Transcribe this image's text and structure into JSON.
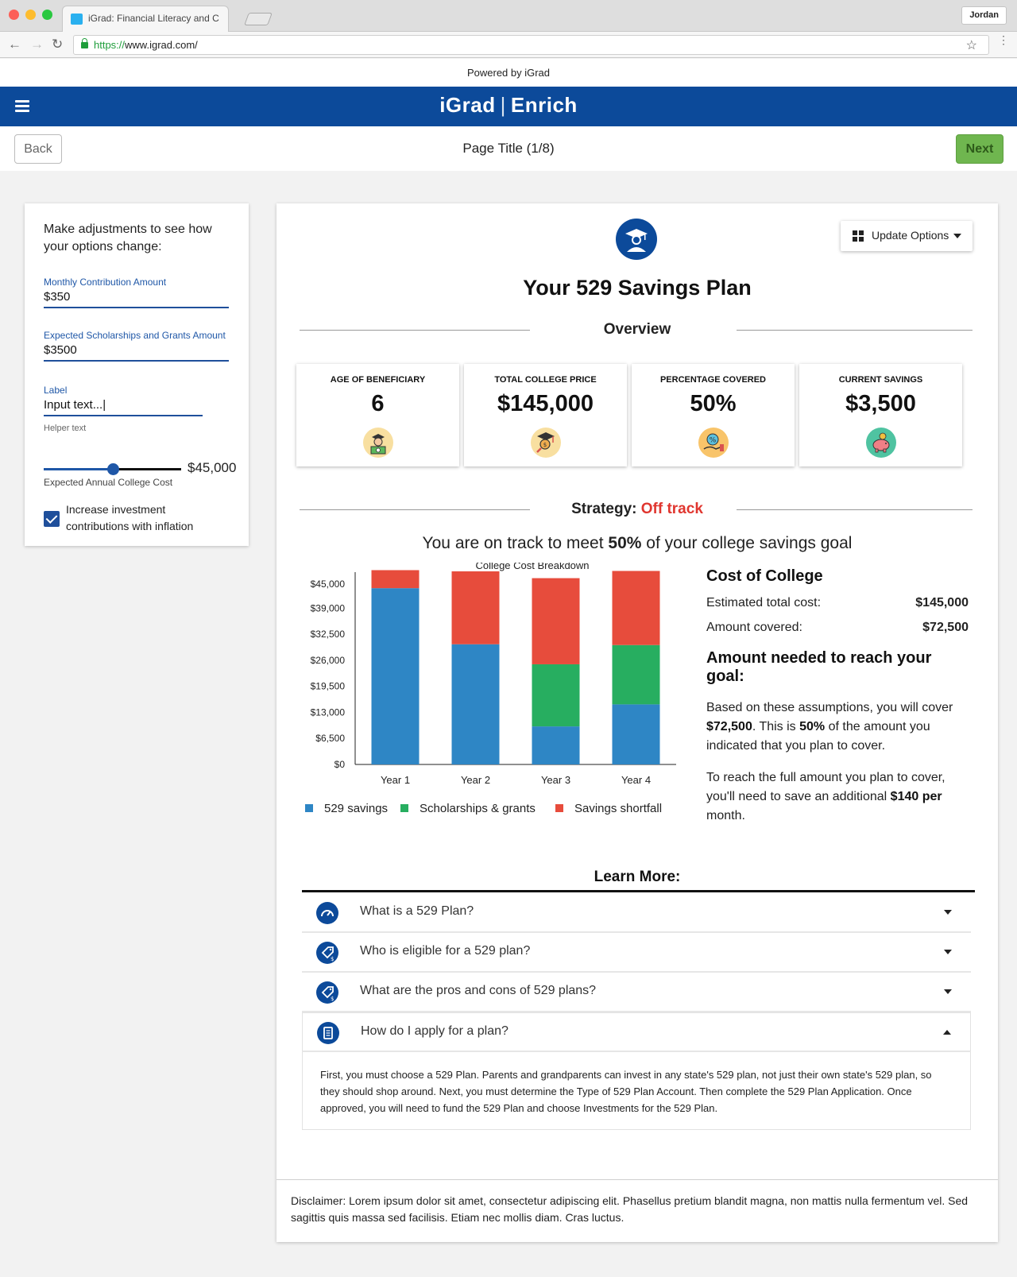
{
  "browser": {
    "tab_title": "iGrad: Financial Literacy and C",
    "url_protocol": "https://",
    "url_rest": "www.igrad.com/",
    "profile": "Jordan"
  },
  "header": {
    "powered_by": "Powered by iGrad",
    "logo_left": "iGrad",
    "logo_sep": "|",
    "logo_right": "Enrich",
    "brand_color": "#0c4a9a"
  },
  "nav": {
    "back_label": "Back",
    "page_title": "Page Title (1/8)",
    "next_label": "Next"
  },
  "adjustments": {
    "heading": "Make adjustments to see how your options change:",
    "fields": [
      {
        "label": "Monthly Contribution Amount",
        "value": "$350"
      },
      {
        "label": "Expected Scholarships and Grants Amount",
        "value": "$3500"
      },
      {
        "label": "Label",
        "value": "Input text...|"
      }
    ],
    "helper_text": "Helper text",
    "slider": {
      "value_text": "$45,000",
      "label": "Expected Annual College Cost",
      "fraction": 0.5
    },
    "checkbox": {
      "label": "Increase investment contributions with inflation",
      "checked": true
    }
  },
  "main": {
    "update_options_label": "Update Options",
    "title": "Your 529 Savings Plan",
    "overview_heading": "Overview",
    "stats": [
      {
        "label": "AGE OF BENEFICIARY",
        "value": "6",
        "icon": "graduate-money-icon"
      },
      {
        "label": "TOTAL COLLEGE PRICE",
        "value": "$145,000",
        "icon": "graduation-cap-search-icon"
      },
      {
        "label": "PERCENTAGE COVERED",
        "value": "50%",
        "icon": "percent-hand-icon"
      },
      {
        "label": "CURRENT SAVINGS",
        "value": "$3,500",
        "icon": "piggy-bank-icon"
      }
    ],
    "strategy_label": "Strategy:",
    "strategy_status": "Off track",
    "goal_pre": "You are on track to meet ",
    "goal_pct": "50%",
    "goal_post": " of your college savings goal",
    "cost": {
      "title": "Cost of College",
      "rows": [
        {
          "label": "Estimated total cost:",
          "value": "$145,000"
        },
        {
          "label": "Amount covered:",
          "value": "$72,500"
        }
      ],
      "need_title": "Amount needed to reach your goal:",
      "p1_a": "Based on these assumptions, you will cover ",
      "p1_b": "$72,500",
      "p1_c": ". This is ",
      "p1_d": "50%",
      "p1_e": " of the amount you indicated that you plan to cover.",
      "p2_a": "To reach the full amount you plan to cover, you'll need to save an additional ",
      "p2_b": "$140 per",
      "p2_c": " month."
    },
    "learn_more": "Learn More:",
    "faqs": [
      {
        "q": "What is a 529 Plan?",
        "open": false
      },
      {
        "q": "Who is eligible for a 529 plan?",
        "open": false
      },
      {
        "q": "What are the pros and cons of 529 plans?",
        "open": false
      },
      {
        "q": "How do I apply for a plan?",
        "open": true
      }
    ],
    "faq_answer": "First, you must choose a 529 Plan. Parents and grandparents can invest in any state's 529 plan, not just their own state's 529 plan, so they should shop around. Next, you must determine the Type of 529 Plan Account. Then complete the 529 Plan Application. Once approved, you will need to fund the 529 Plan and choose Investments for the 529 Plan.",
    "disclaimer": "Disclaimer: Lorem ipsum dolor sit amet, consectetur adipiscing elit. Phasellus pretium blandit magna, non mattis nulla fermentum vel. Sed sagittis quis massa sed facilisis. Etiam nec mollis diam. Cras luctus."
  },
  "chart_data": {
    "type": "bar",
    "stacked": true,
    "title": "College Cost Breakdown",
    "categories": [
      "Year 1",
      "Year 2",
      "Year 3",
      "Year 4"
    ],
    "yticks": [
      "$0",
      "$6,500",
      "$13,000",
      "$19,500",
      "$26,000",
      "$32,500",
      "$39,000",
      "$45,000"
    ],
    "ylim": [
      0,
      48000
    ],
    "series": [
      {
        "name": "529 savings",
        "color": "#2e86c5",
        "values": [
          44000,
          30000,
          9500,
          15000
        ]
      },
      {
        "name": "Scholarships & grants",
        "color": "#27ae60",
        "values": [
          0,
          0,
          15500,
          14800
        ]
      },
      {
        "name": "Savings shortfall",
        "color": "#e74c3c",
        "values": [
          4500,
          18200,
          21500,
          18500
        ]
      }
    ],
    "legend": "bottom"
  }
}
